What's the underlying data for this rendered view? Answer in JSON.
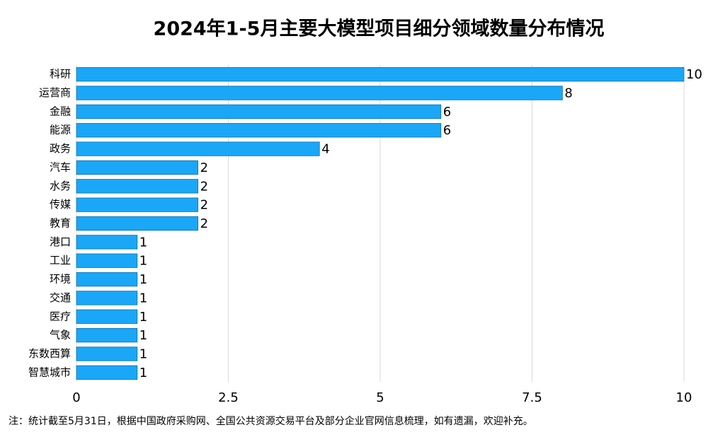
{
  "chart_data": {
    "type": "hbar",
    "title": "2024年1-5月主要大模型项目细分领域数量分布情况",
    "categories": [
      "科研",
      "运营商",
      "金融",
      "能源",
      "政务",
      "汽车",
      "水务",
      "传媒",
      "教育",
      "港口",
      "工业",
      "环境",
      "交通",
      "医疗",
      "气象",
      "东数西算",
      "智慧城市"
    ],
    "values": [
      10,
      8,
      6,
      6,
      4,
      2,
      2,
      2,
      2,
      1,
      1,
      1,
      1,
      1,
      1,
      1,
      1
    ],
    "color": "#1aa7f7",
    "xlim": [
      0,
      10
    ],
    "xticks": [
      0,
      2.5,
      5,
      7.5,
      10
    ],
    "grid": true,
    "note": "注：统计截至5月31日，根据中国政府采购网、全国公共资源交易平台及部分企业官网信息梳理，如有遗漏，欢迎补充。"
  }
}
